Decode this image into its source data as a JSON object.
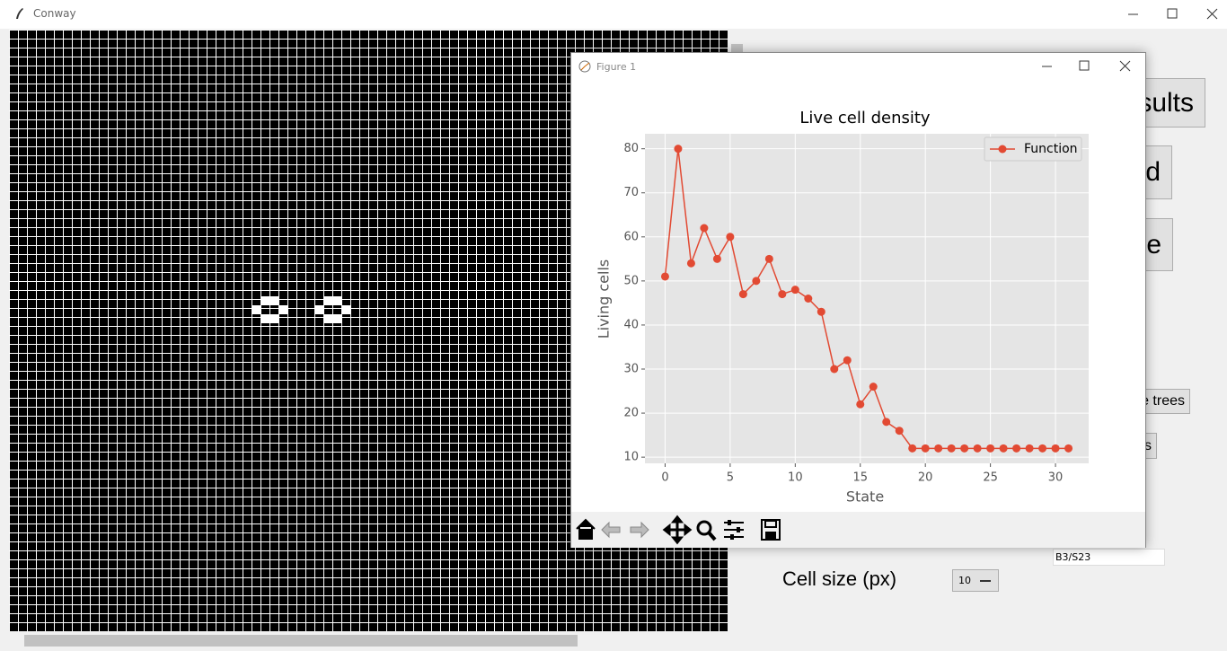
{
  "window": {
    "title": "Conway"
  },
  "buttons": [
    "sults",
    "d",
    "e",
    "e trees",
    "s"
  ],
  "settings": {
    "cell_size_label": "Cell size (px)",
    "cell_size": 10,
    "rule": "B3/S23"
  },
  "figure": {
    "title": "Figure 1"
  },
  "chart_data": {
    "type": "line",
    "title": "Live cell density",
    "x_label": "State",
    "y_label": "Living cells",
    "x": [
      0,
      1,
      2,
      3,
      4,
      5,
      6,
      7,
      8,
      9,
      10,
      11,
      12,
      13,
      14,
      15,
      16,
      17,
      18,
      19,
      20,
      21,
      22,
      23,
      24,
      25,
      26,
      27,
      28,
      29,
      30,
      31
    ],
    "series": [
      {
        "name": "Function",
        "color": "#e24a33",
        "values": [
          51,
          80,
          54,
          62,
          55,
          60,
          47,
          50,
          55,
          47,
          48,
          46,
          43,
          30,
          32,
          22,
          26,
          18,
          16,
          12,
          12,
          12,
          12,
          12,
          12,
          12,
          12,
          12,
          12,
          12,
          12,
          12
        ]
      }
    ],
    "xlim": [
      -1.55,
      32.55
    ],
    "ylim": [
      8.6,
      83.4
    ],
    "xticks": [
      0,
      5,
      10,
      15,
      20,
      25,
      30
    ],
    "yticks": [
      10,
      20,
      30,
      40,
      50,
      60,
      70,
      80
    ],
    "grid": true,
    "legend": "upper right"
  }
}
